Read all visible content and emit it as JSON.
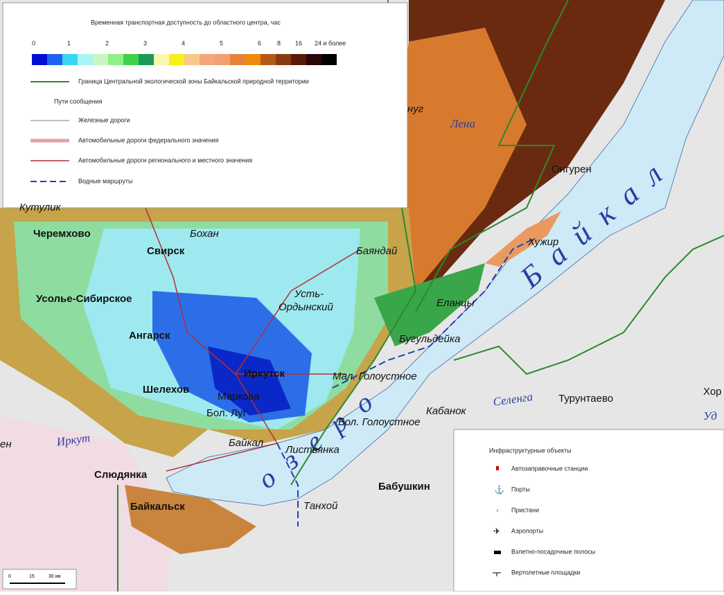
{
  "legend": {
    "title": "Временная транспортная доступность до областного центра, час",
    "scale_labels": [
      "0",
      "1",
      "2",
      "3",
      "4",
      "5",
      "6",
      "8",
      "16",
      "24 и более"
    ],
    "items": [
      "Граница Центральной экологической зоны Байкальской природной территории",
      "Пути сообщения",
      "Железные дороги",
      "Автомобильные дороги федерального значения",
      "Автомобильные дороги регионального и местного значения",
      "Водные маршруты"
    ]
  },
  "infrastructure": {
    "title": "Инфраструктурные объекты",
    "items": [
      "Автозаправочные станции",
      "Порты",
      "Пристани",
      "Аэропорты",
      "Взлетно-посадочные полосы",
      "Вертолетные площадки"
    ]
  },
  "scale_bar": [
    "0",
    "15",
    "30 км"
  ],
  "lake": {
    "name": "Байкал",
    "word": "озеро"
  },
  "rivers": [
    "Лена",
    "Иркут",
    "Селенга",
    "Уд"
  ],
  "places": [
    "Черемхово",
    "Свирск",
    "Бохан",
    "Баяндай",
    "Усолье-Сибирское",
    "Усть-",
    "Ордынский",
    "Ангарск",
    "Иркутск",
    "Шелехов",
    "Маркова",
    "Бол. Луг",
    "Мал. Голоустное",
    "Бол. Голоустное",
    "Байкал",
    "Листвянка",
    "Кабанок",
    "Слюдянка",
    "Байкальск",
    "Танхой",
    "Бабушкин",
    "Еланцы",
    "Бугульдейка",
    "Хужир",
    "Онгурен",
    "Турунтаево",
    "Хор",
    "Кутулик",
    "нуг",
    "ен"
  ]
}
